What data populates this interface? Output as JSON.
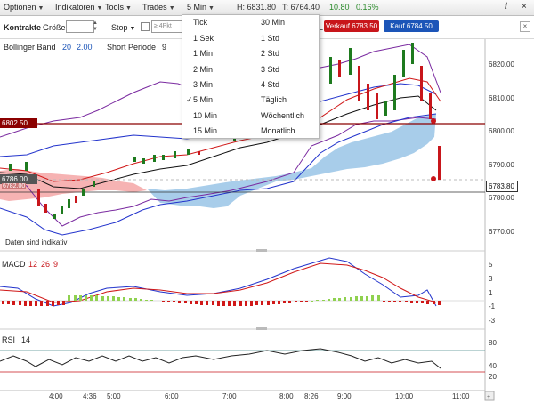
{
  "menubar": {
    "optionen": "Optionen",
    "indikatoren": "Indikatoren",
    "tools": "Tools",
    "trades": "Trades",
    "interval": "5 Min",
    "high": "H: 6831.80",
    "low": "T: 6764.40",
    "change": "10.80",
    "change_pct": "0.16%",
    "info_icon": "info-icon",
    "close_icon": "close-icon"
  },
  "toolbar": {
    "kontrakte": "Kontrakte",
    "groesse": "Größe",
    "stop": "Stop",
    "stop_placeholder": "≥ 4Pkt",
    "limit_letter": "L",
    "sell_label": "Verkauf 6783.50",
    "buy_label": "Kauf 6784.50"
  },
  "dropdown": {
    "col1": [
      "Tick",
      "1 Sek",
      "1 Min",
      "2 Min",
      "3 Min",
      "5 Min",
      "10 Min",
      "15 Min"
    ],
    "col2": [
      "30 Min",
      "1 Std",
      "2 Std",
      "3 Std",
      "4 Std",
      "Täglich",
      "Wöchentlich",
      "Monatlich"
    ],
    "selected": "5 Min"
  },
  "chart": {
    "indicator_label": "Bollinger Band",
    "bb_p1": "20",
    "bb_p2": "2.00",
    "short_label": "Short Periode",
    "short_val": "9",
    "y_ticks": [
      "6820.00",
      "6810.00",
      "6800.00",
      "6790.00",
      "6780.00",
      "6770.00"
    ],
    "price_left_1": "6802.50",
    "price_left_2": "6786.00",
    "price_left_3": "6782.00",
    "price_right": "6783.80",
    "footnote": "Daten sind indikativ",
    "colors": {
      "up": "#1e7a1e",
      "down": "#c8161b",
      "cloud_red": "#f4a6a6",
      "cloud_blue": "#9fc8e8"
    }
  },
  "macd": {
    "label": "MACD",
    "p1": "12",
    "p2": "26",
    "p3": "9",
    "y_ticks": [
      "5",
      "3",
      "1",
      "-1",
      "-3"
    ]
  },
  "rsi": {
    "label": "RSI",
    "p": "14",
    "y_ticks": [
      "80",
      "40",
      "20"
    ]
  },
  "time_axis": [
    "4:00",
    "4:36",
    "5:00",
    "6:00",
    "7:00",
    "8:00",
    "8:26",
    "9:00",
    "10:00",
    "11:00"
  ]
}
